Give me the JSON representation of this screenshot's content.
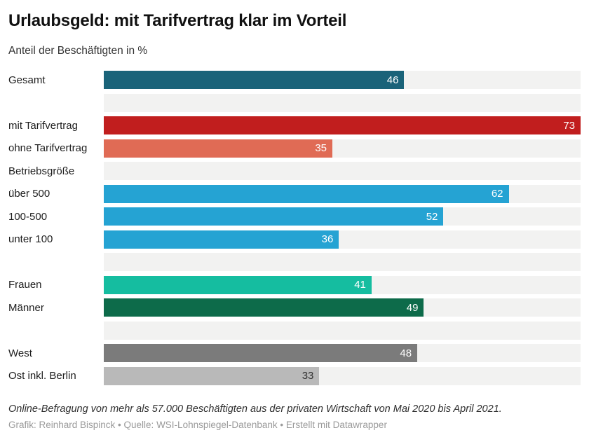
{
  "page": {
    "title": "Urlaubsgeld: mit Tarifvertrag klar im Vorteil",
    "subtitle": "Anteil der Beschäftigten in %",
    "notes": "Online-Befragung von mehr als 57.000 Beschäftigten aus der privaten Wirtschaft von Mai 2020 bis April 2021.",
    "credits": "Grafik: Reinhard Bispinck • Quelle: WSI-Lohnspiegel-Datenbank • Erstellt mit Datawrapper"
  },
  "colors": {
    "track": "#f2f2f1",
    "title_text": "#111111",
    "label_text": "#1d1d1d",
    "value_text_light": "#ffffff",
    "value_text_dark": "#333333",
    "credits_text": "#9a9a9a"
  },
  "chart_data": {
    "type": "bar",
    "orientation": "horizontal",
    "title": "Urlaubsgeld: mit Tarifvertrag klar im Vorteil",
    "subtitle": "Anteil der Beschäftigten in %",
    "unit": "%",
    "xlim": [
      0,
      73
    ],
    "grid": false,
    "legend": false,
    "rows": [
      {
        "kind": "bar",
        "label": "Gesamt",
        "value": 46,
        "color": "#1a6379",
        "value_color": "#ffffff"
      },
      {
        "kind": "spacer",
        "label": ""
      },
      {
        "kind": "bar",
        "label": "mit Tarifvertrag",
        "value": 73,
        "color": "#c11e1e",
        "value_color": "#ffffff"
      },
      {
        "kind": "bar",
        "label": "ohne Tarifvertrag",
        "value": 35,
        "color": "#e06b55",
        "value_color": "#ffffff"
      },
      {
        "kind": "header",
        "label": "Betriebsgröße"
      },
      {
        "kind": "bar",
        "label": "über 500",
        "value": 62,
        "color": "#25a3d3",
        "value_color": "#ffffff"
      },
      {
        "kind": "bar",
        "label": "100-500",
        "value": 52,
        "color": "#25a3d3",
        "value_color": "#ffffff"
      },
      {
        "kind": "bar",
        "label": "unter 100",
        "value": 36,
        "color": "#25a3d3",
        "value_color": "#ffffff"
      },
      {
        "kind": "spacer",
        "label": ""
      },
      {
        "kind": "bar",
        "label": "Frauen",
        "value": 41,
        "color": "#15bda0",
        "value_color": "#ffffff"
      },
      {
        "kind": "bar",
        "label": "Männer",
        "value": 49,
        "color": "#0d6b4a",
        "value_color": "#ffffff"
      },
      {
        "kind": "spacer",
        "label": ""
      },
      {
        "kind": "bar",
        "label": "West",
        "value": 48,
        "color": "#7b7b7b",
        "value_color": "#ffffff"
      },
      {
        "kind": "bar",
        "label": "Ost inkl. Berlin",
        "value": 33,
        "color": "#b9b9b9",
        "value_color": "#333333"
      }
    ],
    "notes": "Online-Befragung von mehr als 57.000 Beschäftigten aus der privaten Wirtschaft von Mai 2020 bis April 2021.",
    "credits": "Grafik: Reinhard Bispinck • Quelle: WSI-Lohnspiegel-Datenbank • Erstellt mit Datawrapper"
  }
}
